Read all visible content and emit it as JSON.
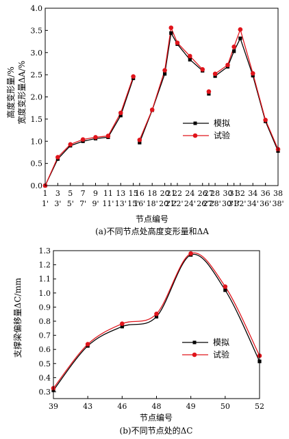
{
  "colors": {
    "sim": "#000000",
    "exp": "#e0141b",
    "axis": "#000000"
  },
  "chart_data": [
    {
      "type": "line",
      "xlabel": "节点编号",
      "ylabel_lines": [
        "高度变形量/%",
        "宽度变形量ΔA/%"
      ],
      "caption": "(a)不同节点处高度变形量和ΔA",
      "ylim": [
        0,
        4
      ],
      "yticks": [
        "0.0",
        "0.5",
        "1.0",
        "1.5",
        "2.0",
        "2.5",
        "3.0",
        "3.5",
        "4.0"
      ],
      "xtick_rows": [
        [
          "1",
          "3",
          "5",
          "7",
          "9",
          "11",
          "13",
          "15",
          "16",
          "18",
          "20",
          "21",
          "22",
          "24",
          "26",
          "27",
          "28",
          "30",
          "31",
          "32",
          "34",
          "36",
          "38"
        ],
        [
          "1'",
          "3'",
          "5'",
          "7'",
          "9'",
          "11'",
          "13'",
          "15'",
          "16'",
          "18'",
          "20'",
          "21'",
          "22'",
          "24'",
          "26'",
          "27'",
          "28'",
          "30'",
          "31'",
          "32'",
          "34'",
          "36'",
          "38'"
        ]
      ],
      "legend_position": "right-middle",
      "series": [
        {
          "name": "模拟",
          "marker": "square",
          "segments": [
            [
              [
                1,
                0.0
              ],
              [
                3,
                0.6
              ],
              [
                5,
                0.9
              ],
              [
                7,
                1.0
              ],
              [
                9,
                1.06
              ],
              [
                11,
                1.09
              ],
              [
                13,
                1.58
              ],
              [
                15,
                2.42
              ]
            ],
            [
              [
                16,
                0.97
              ],
              [
                18,
                1.7
              ],
              [
                20,
                2.52
              ],
              [
                21,
                3.44
              ],
              [
                22,
                3.19
              ],
              [
                24,
                2.84
              ],
              [
                26,
                2.59
              ]
            ],
            [
              [
                27,
                2.07
              ]
            ],
            [
              [
                28,
                2.47
              ],
              [
                30,
                2.68
              ],
              [
                31,
                3.03
              ],
              [
                32,
                3.32
              ],
              [
                34,
                2.48
              ],
              [
                36,
                1.45
              ],
              [
                38,
                0.78
              ]
            ]
          ]
        },
        {
          "name": "试验",
          "marker": "circle",
          "segments": [
            [
              [
                1,
                0.0
              ],
              [
                3,
                0.64
              ],
              [
                5,
                0.93
              ],
              [
                7,
                1.04
              ],
              [
                9,
                1.09
              ],
              [
                11,
                1.12
              ],
              [
                13,
                1.64
              ],
              [
                15,
                2.46
              ]
            ],
            [
              [
                16,
                1.03
              ],
              [
                18,
                1.71
              ],
              [
                20,
                2.6
              ],
              [
                21,
                3.56
              ],
              [
                22,
                3.22
              ],
              [
                24,
                2.92
              ],
              [
                26,
                2.62
              ]
            ],
            [
              [
                27,
                2.12
              ]
            ],
            [
              [
                28,
                2.52
              ],
              [
                30,
                2.72
              ],
              [
                31,
                3.13
              ],
              [
                32,
                3.52
              ],
              [
                34,
                2.53
              ],
              [
                36,
                1.48
              ],
              [
                38,
                0.82
              ]
            ]
          ]
        }
      ]
    },
    {
      "type": "line",
      "xlabel": "节点编号",
      "ylabel": "支撑梁偏移量ΔC/mm",
      "caption": "(b)不同节点处的ΔC",
      "ylim": [
        0.3,
        1.3
      ],
      "yticks": [
        "0.3",
        "0.4",
        "0.5",
        "0.6",
        "0.7",
        "0.8",
        "0.9",
        "1.0",
        "1.1",
        "1.2",
        "1.3"
      ],
      "categories": [
        "39",
        "43",
        "46",
        "48",
        "49",
        "50",
        "52"
      ],
      "legend_position": "right-middle",
      "series": [
        {
          "name": "模拟",
          "marker": "square",
          "values": [
            0.31,
            0.625,
            0.762,
            0.832,
            1.27,
            1.02,
            0.515
          ]
        },
        {
          "name": "试验",
          "marker": "circle",
          "values": [
            0.325,
            0.637,
            0.782,
            0.852,
            1.28,
            1.045,
            0.555
          ]
        }
      ]
    }
  ]
}
